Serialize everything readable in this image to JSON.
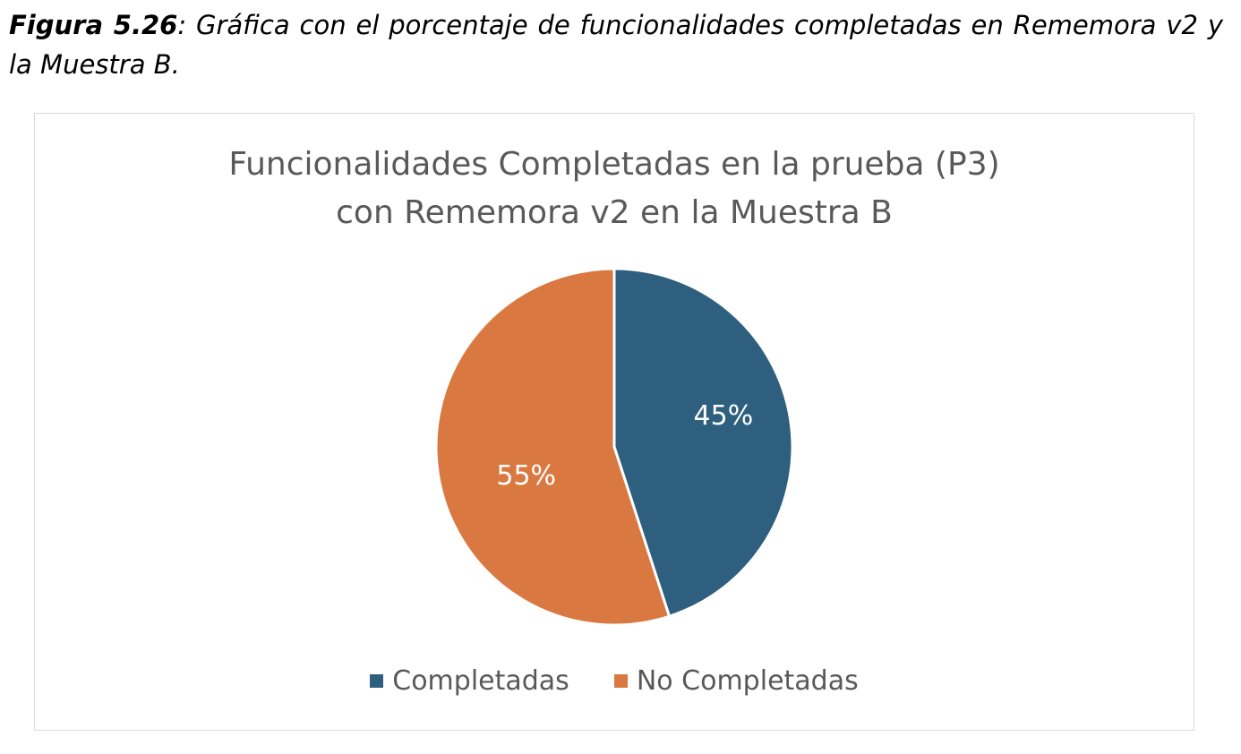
{
  "caption": {
    "figure_label": "Figura 5.26",
    "text": ": Gráfica con el porcentaje de funcionalidades completadas en Rememora v2 y la Muestra B."
  },
  "chart_data": {
    "type": "pie",
    "title": "Funcionalidades Completadas en la prueba (P3) con Rememora v2 en la Muestra B",
    "title_lines": [
      "Funcionalidades Completadas en la prueba (P3)",
      "con Rememora v2 en la Muestra B"
    ],
    "categories": [
      "Completadas",
      "No Completadas"
    ],
    "values": [
      45,
      55
    ],
    "labels": [
      "45%",
      "55%"
    ],
    "colors": [
      "#2e5f7e",
      "#d97941"
    ],
    "legend_position": "bottom"
  }
}
